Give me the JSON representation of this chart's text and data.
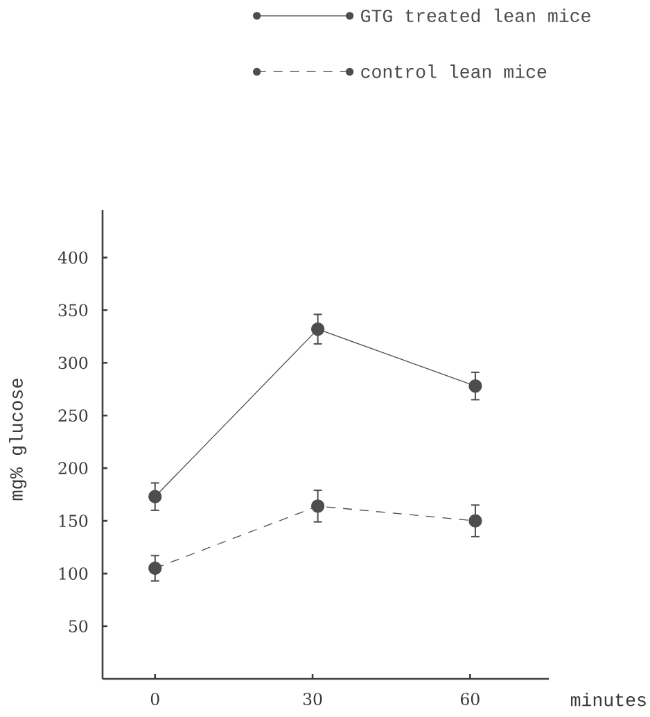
{
  "chart_data": {
    "type": "line",
    "xlabel": "minutes",
    "ylabel": "mg% glucose",
    "x": [
      0,
      31,
      61
    ],
    "xlim": [
      -10,
      75
    ],
    "xticks": [
      0,
      30,
      60
    ],
    "ylim": [
      0,
      445
    ],
    "yticks": [
      50,
      100,
      150,
      200,
      250,
      300,
      350,
      400
    ],
    "series": [
      {
        "name": "GTG treated lean mice",
        "color": "#4d4d4d",
        "values": [
          173,
          332,
          278
        ],
        "errors": [
          13,
          14,
          13
        ],
        "line_style": "solid"
      },
      {
        "name": "control lean mice",
        "color": "#4d4d4d",
        "values": [
          105,
          164,
          150
        ],
        "errors": [
          12,
          15,
          15
        ],
        "line_style": "dashed"
      }
    ],
    "marker": "circle",
    "legend": "top"
  }
}
